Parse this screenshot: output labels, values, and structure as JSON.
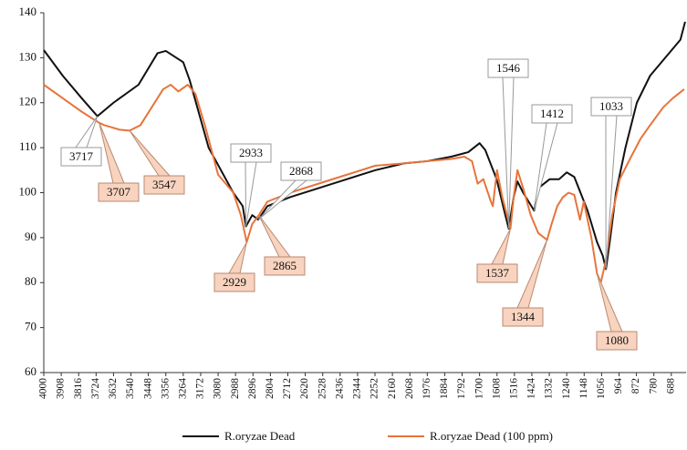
{
  "chart_data": {
    "type": "line",
    "xlim": [
      4000,
      610
    ],
    "ylim": [
      60,
      140
    ],
    "xticks": [
      4000,
      3908,
      3816,
      3724,
      3632,
      3540,
      3448,
      3356,
      3264,
      3172,
      3080,
      2988,
      2896,
      2804,
      2712,
      2620,
      2528,
      2436,
      2344,
      2252,
      2160,
      2068,
      1976,
      1884,
      1792,
      1700,
      1608,
      1516,
      1424,
      1332,
      1240,
      1148,
      1056,
      964,
      872,
      780,
      688
    ],
    "yticks": [
      60,
      70,
      80,
      90,
      100,
      110,
      120,
      130,
      140
    ],
    "legend": "bottom",
    "series": [
      {
        "name": "R.oryzae Dead",
        "color": "#111111",
        "x": [
          4000,
          3900,
          3800,
          3717,
          3632,
          3500,
          3400,
          3356,
          3264,
          3230,
          3130,
          3000,
          2950,
          2933,
          2900,
          2868,
          2820,
          2700,
          2550,
          2400,
          2250,
          2100,
          1976,
          1850,
          1760,
          1700,
          1670,
          1610,
          1570,
          1546,
          1520,
          1500,
          1470,
          1412,
          1390,
          1330,
          1280,
          1240,
          1200,
          1130,
          1080,
          1050,
          1033,
          1010,
          980,
          930,
          870,
          800,
          720,
          680,
          640,
          615
        ],
        "values": [
          131.7,
          126,
          121,
          117,
          120,
          124,
          131,
          131.5,
          129,
          125,
          110,
          100,
          97,
          92.5,
          95,
          94,
          97,
          99,
          101,
          103,
          105,
          106.5,
          107,
          108,
          109,
          111,
          109.5,
          103,
          96,
          92,
          99,
          102.5,
          100,
          96,
          101,
          103,
          103,
          104.5,
          103.5,
          96,
          89,
          86,
          83,
          90,
          100,
          110,
          120,
          126,
          130,
          132,
          134,
          138
        ]
      },
      {
        "name": "R.oryzae Dead (100 ppm)",
        "color": "#e8743b",
        "x": [
          4000,
          3900,
          3800,
          3707,
          3680,
          3600,
          3547,
          3490,
          3430,
          3370,
          3330,
          3290,
          3240,
          3200,
          3150,
          3080,
          3000,
          2960,
          2929,
          2900,
          2865,
          2820,
          2700,
          2550,
          2400,
          2250,
          2100,
          1976,
          1850,
          1780,
          1740,
          1710,
          1680,
          1640,
          1630,
          1608,
          1580,
          1537,
          1520,
          1500,
          1470,
          1430,
          1390,
          1344,
          1320,
          1290,
          1260,
          1230,
          1200,
          1170,
          1150,
          1110,
          1080,
          1060,
          1033,
          1000,
          960,
          900,
          850,
          800,
          730,
          680,
          620
        ],
        "values": [
          124,
          121,
          118,
          115.5,
          115,
          114,
          113.8,
          115,
          119,
          123,
          124,
          122.5,
          124,
          122,
          115,
          104,
          100,
          95,
          89,
          93,
          95,
          98,
          100,
          102,
          104,
          106,
          106.5,
          107,
          107.5,
          108,
          107,
          102,
          103,
          98,
          97,
          105,
          99,
          92,
          99,
          105,
          101,
          95,
          91,
          89.5,
          93,
          97,
          99,
          100,
          99.5,
          94,
          98,
          90,
          82,
          80,
          85,
          95,
          103,
          108,
          112,
          115,
          119,
          121,
          123
        ]
      }
    ],
    "annotations": [
      {
        "x": 3717,
        "y": 117,
        "series": 0
      },
      {
        "x": 3707,
        "y": 115.5,
        "series": 1
      },
      {
        "x": 3547,
        "y": 113.8,
        "series": 1
      },
      {
        "x": 2933,
        "y": 92.5,
        "series": 0
      },
      {
        "x": 2929,
        "y": 89,
        "series": 1
      },
      {
        "x": 2865,
        "y": 95,
        "series": 1
      },
      {
        "x": 2868,
        "y": 94,
        "series": 0
      },
      {
        "x": 1546,
        "y": 92,
        "series": 0
      },
      {
        "x": 1537,
        "y": 92,
        "series": 1
      },
      {
        "x": 1412,
        "y": 96,
        "series": 0
      },
      {
        "x": 1344,
        "y": 89.5,
        "series": 1
      },
      {
        "x": 1033,
        "y": 83,
        "series": 0
      },
      {
        "x": 1080,
        "y": 82,
        "series": 1
      }
    ]
  }
}
